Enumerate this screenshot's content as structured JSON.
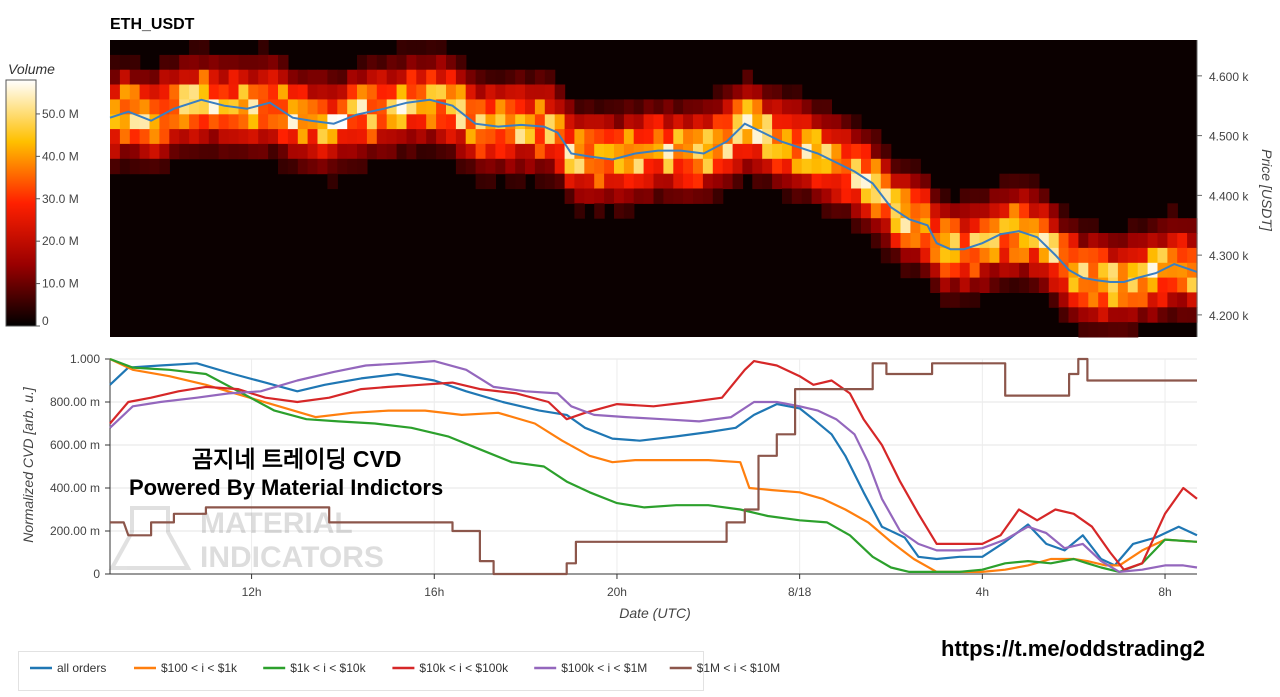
{
  "title": "ETH_USDT",
  "overlay": {
    "line1": "곰지네 트레이딩 CVD",
    "line2": "Powered By Material Indictors",
    "link": "https://t.me/oddstrading2",
    "watermark1": "MATERIAL",
    "watermark2": "INDICATORS"
  },
  "colors": {
    "all": "#1f77b4",
    "r100": "#ff7f0e",
    "r1k": "#2ca02c",
    "r10k": "#d62728",
    "r100k": "#9467bd",
    "r1m": "#8c564b",
    "heat_bg": "#0b0000"
  },
  "chart_data": [
    {
      "type": "heatmap",
      "title": "ETH_USDT",
      "colorbar_label": "Volume",
      "colorbar_ticks": [
        "0",
        "10.0 M",
        "20.0 M",
        "30.0 M",
        "40.0 M",
        "50.0 M"
      ],
      "colorbar_range": [
        0,
        58
      ],
      "ylabel": "Price [USDT]",
      "y_ticks": [
        "4.200 k",
        "4.300 k",
        "4.400 k",
        "4.500 k",
        "4.600 k"
      ],
      "y_tick_values": [
        4200,
        4300,
        4400,
        4500,
        4600
      ],
      "ylim": [
        4163,
        4660
      ],
      "x_range_hours": [
        8.9,
        32.7
      ],
      "price_line": {
        "name": "price",
        "x": [
          8.9,
          9.3,
          9.8,
          10.3,
          10.9,
          11.4,
          11.9,
          12.4,
          12.9,
          13.3,
          13.8,
          14.3,
          14.9,
          15.4,
          15.9,
          16.4,
          16.9,
          17.4,
          17.9,
          18.4,
          18.7,
          19.0,
          19.4,
          19.9,
          20.4,
          20.9,
          21.4,
          21.9,
          22.4,
          22.8,
          23.2,
          23.6,
          24.0,
          24.4,
          24.8,
          25.2,
          25.6,
          26.0,
          26.4,
          26.8,
          27.0,
          27.3,
          27.6,
          28.0,
          28.4,
          28.8,
          29.2,
          29.6,
          29.9,
          30.2,
          30.5,
          30.8,
          31.1,
          31.4,
          31.8,
          32.2,
          32.7
        ],
        "y": [
          4530,
          4540,
          4525,
          4545,
          4560,
          4550,
          4545,
          4555,
          4530,
          4525,
          4520,
          4535,
          4545,
          4555,
          4560,
          4550,
          4520,
          4515,
          4518,
          4515,
          4505,
          4470,
          4465,
          4460,
          4470,
          4475,
          4475,
          4470,
          4490,
          4520,
          4505,
          4490,
          4480,
          4470,
          4455,
          4440,
          4420,
          4380,
          4360,
          4350,
          4320,
          4310,
          4310,
          4320,
          4335,
          4340,
          4330,
          4300,
          4275,
          4262,
          4258,
          4255,
          4255,
          4262,
          4270,
          4285,
          4272
        ]
      }
    },
    {
      "type": "line",
      "xlabel": "Date (UTC)",
      "ylabel": "Normalized CVD [arb. u.]",
      "x_ticks": [
        "12h",
        "16h",
        "20h",
        "8/18",
        "4h",
        "8h"
      ],
      "x_tick_values": [
        12,
        16,
        20,
        24,
        28,
        32
      ],
      "xlim": [
        8.9,
        32.7
      ],
      "y_ticks": [
        "0",
        "200.00 m",
        "400.00 m",
        "600.00 m",
        "800.00 m",
        "1.000"
      ],
      "y_tick_values": [
        0,
        0.2,
        0.4,
        0.6,
        0.8,
        1.0
      ],
      "ylim": [
        0,
        1.0
      ],
      "series": [
        {
          "name": "all orders",
          "color_key": "all",
          "x": [
            8.9,
            9.3,
            10.0,
            10.8,
            11.6,
            12.3,
            13.0,
            13.6,
            14.4,
            15.2,
            16.0,
            16.7,
            17.5,
            18.3,
            18.9,
            19.3,
            19.9,
            20.5,
            21.3,
            22.0,
            22.6,
            23.0,
            23.5,
            24.0,
            24.3,
            24.7,
            25.0,
            25.4,
            25.8,
            26.3,
            26.6,
            27.0,
            27.5,
            28.0,
            28.5,
            29.0,
            29.4,
            29.8,
            30.2,
            30.6,
            30.9,
            31.3,
            31.8,
            32.3,
            32.7
          ],
          "y": [
            0.88,
            0.96,
            0.97,
            0.98,
            0.93,
            0.89,
            0.85,
            0.88,
            0.91,
            0.93,
            0.9,
            0.85,
            0.8,
            0.76,
            0.74,
            0.68,
            0.63,
            0.62,
            0.64,
            0.66,
            0.68,
            0.74,
            0.79,
            0.77,
            0.72,
            0.65,
            0.55,
            0.38,
            0.22,
            0.17,
            0.08,
            0.07,
            0.08,
            0.08,
            0.15,
            0.23,
            0.14,
            0.11,
            0.18,
            0.07,
            0.04,
            0.14,
            0.17,
            0.22,
            0.18
          ]
        },
        {
          "name": "$100 < i < $1k",
          "color_key": "r100",
          "x": [
            8.9,
            9.4,
            10.2,
            11.0,
            11.8,
            12.6,
            13.4,
            14.2,
            15.0,
            15.8,
            16.6,
            17.4,
            18.2,
            18.8,
            19.4,
            19.9,
            20.4,
            21.2,
            22.0,
            22.7,
            22.9,
            23.4,
            24.0,
            24.5,
            25.0,
            25.5,
            26.0,
            26.5,
            27.0,
            27.5,
            28.0,
            28.5,
            29.0,
            29.5,
            30.0,
            30.3,
            30.7,
            31.0,
            31.5,
            32.0,
            32.7
          ],
          "y": [
            1.0,
            0.95,
            0.92,
            0.88,
            0.83,
            0.78,
            0.73,
            0.75,
            0.76,
            0.76,
            0.74,
            0.75,
            0.7,
            0.62,
            0.55,
            0.52,
            0.53,
            0.53,
            0.53,
            0.52,
            0.4,
            0.39,
            0.38,
            0.35,
            0.3,
            0.24,
            0.15,
            0.07,
            0.01,
            0.01,
            0.01,
            0.02,
            0.04,
            0.07,
            0.07,
            0.06,
            0.04,
            0.04,
            0.11,
            0.16,
            0.15
          ]
        },
        {
          "name": "$1k < i < $10k",
          "color_key": "r1k",
          "x": [
            8.9,
            9.4,
            10.2,
            11.0,
            11.8,
            12.5,
            13.2,
            13.9,
            14.7,
            15.5,
            16.3,
            17.0,
            17.7,
            18.4,
            18.9,
            19.4,
            20.0,
            20.6,
            21.3,
            22.0,
            22.7,
            23.3,
            24.0,
            24.6,
            25.1,
            25.6,
            26.0,
            26.4,
            27.0,
            27.5,
            28.0,
            28.5,
            29.0,
            29.5,
            30.0,
            30.3,
            30.6,
            31.0,
            31.5,
            32.0,
            32.7
          ],
          "y": [
            1.0,
            0.96,
            0.95,
            0.93,
            0.84,
            0.76,
            0.72,
            0.71,
            0.7,
            0.68,
            0.64,
            0.58,
            0.52,
            0.5,
            0.43,
            0.38,
            0.33,
            0.31,
            0.32,
            0.32,
            0.3,
            0.27,
            0.25,
            0.24,
            0.18,
            0.08,
            0.03,
            0.01,
            0.01,
            0.01,
            0.02,
            0.05,
            0.06,
            0.05,
            0.07,
            0.05,
            0.03,
            0.01,
            0.05,
            0.16,
            0.15
          ]
        },
        {
          "name": "$10k < i < $100k",
          "color_key": "r10k",
          "x": [
            8.9,
            9.3,
            9.8,
            10.4,
            11.0,
            11.7,
            12.3,
            13.0,
            13.7,
            14.4,
            15.0,
            15.7,
            16.4,
            17.0,
            17.8,
            18.5,
            18.9,
            19.3,
            20.0,
            20.8,
            21.6,
            22.3,
            22.8,
            23.0,
            23.5,
            24.0,
            24.3,
            24.7,
            25.1,
            25.4,
            25.8,
            26.2,
            26.6,
            27.0,
            27.5,
            28.0,
            28.4,
            28.8,
            29.2,
            29.6,
            30.0,
            30.4,
            30.8,
            31.1,
            31.5,
            32.0,
            32.4,
            32.7
          ],
          "y": [
            0.7,
            0.8,
            0.82,
            0.85,
            0.87,
            0.86,
            0.82,
            0.8,
            0.82,
            0.86,
            0.87,
            0.88,
            0.89,
            0.86,
            0.84,
            0.8,
            0.72,
            0.75,
            0.79,
            0.78,
            0.8,
            0.82,
            0.95,
            0.99,
            0.97,
            0.92,
            0.88,
            0.9,
            0.84,
            0.72,
            0.6,
            0.43,
            0.28,
            0.14,
            0.14,
            0.14,
            0.18,
            0.3,
            0.25,
            0.3,
            0.28,
            0.22,
            0.1,
            0.02,
            0.05,
            0.28,
            0.4,
            0.35
          ]
        },
        {
          "name": "$100k < i < $1M",
          "color_key": "r100k",
          "x": [
            8.9,
            9.4,
            10.0,
            10.8,
            11.5,
            12.2,
            13.0,
            13.8,
            14.5,
            15.3,
            16.0,
            16.7,
            17.3,
            18.0,
            18.7,
            19.0,
            19.5,
            20.2,
            21.0,
            21.8,
            22.5,
            23.0,
            23.5,
            24.0,
            24.4,
            24.8,
            25.2,
            25.5,
            25.8,
            26.2,
            26.6,
            27.0,
            27.5,
            28.0,
            28.5,
            29.0,
            29.4,
            29.8,
            30.2,
            30.6,
            31.0,
            31.5,
            32.0,
            32.4,
            32.7
          ],
          "y": [
            0.68,
            0.78,
            0.8,
            0.82,
            0.84,
            0.85,
            0.9,
            0.94,
            0.97,
            0.98,
            0.99,
            0.95,
            0.87,
            0.85,
            0.84,
            0.78,
            0.74,
            0.73,
            0.72,
            0.71,
            0.73,
            0.8,
            0.8,
            0.78,
            0.76,
            0.72,
            0.65,
            0.52,
            0.35,
            0.2,
            0.14,
            0.11,
            0.11,
            0.12,
            0.16,
            0.22,
            0.19,
            0.12,
            0.14,
            0.06,
            0.01,
            0.02,
            0.04,
            0.04,
            0.03
          ]
        },
        {
          "name": "$1M < i < $10M",
          "color_key": "r1m",
          "x": [
            8.9,
            9.2,
            9.3,
            9.8,
            9.8,
            10.3,
            10.3,
            11.0,
            11.0,
            13.7,
            13.7,
            16.4,
            16.4,
            17.0,
            17.0,
            17.3,
            17.3,
            18.9,
            18.9,
            19.1,
            19.1,
            22.4,
            22.4,
            22.8,
            22.8,
            23.1,
            23.1,
            23.5,
            23.5,
            23.9,
            23.9,
            25.6,
            25.6,
            25.9,
            25.9,
            26.9,
            26.9,
            28.5,
            28.5,
            29.9,
            29.9,
            30.1,
            30.1,
            30.3,
            30.3,
            32.7
          ],
          "y": [
            0.24,
            0.24,
            0.18,
            0.18,
            0.24,
            0.24,
            0.28,
            0.28,
            0.31,
            0.31,
            0.24,
            0.24,
            0.2,
            0.2,
            0.06,
            0.06,
            0.0,
            0.0,
            0.05,
            0.05,
            0.15,
            0.15,
            0.24,
            0.24,
            0.3,
            0.3,
            0.55,
            0.55,
            0.65,
            0.65,
            0.86,
            0.86,
            0.98,
            0.98,
            0.93,
            0.93,
            0.98,
            0.98,
            0.83,
            0.83,
            0.93,
            0.93,
            1.0,
            1.0,
            0.9,
            0.9
          ]
        }
      ]
    }
  ]
}
